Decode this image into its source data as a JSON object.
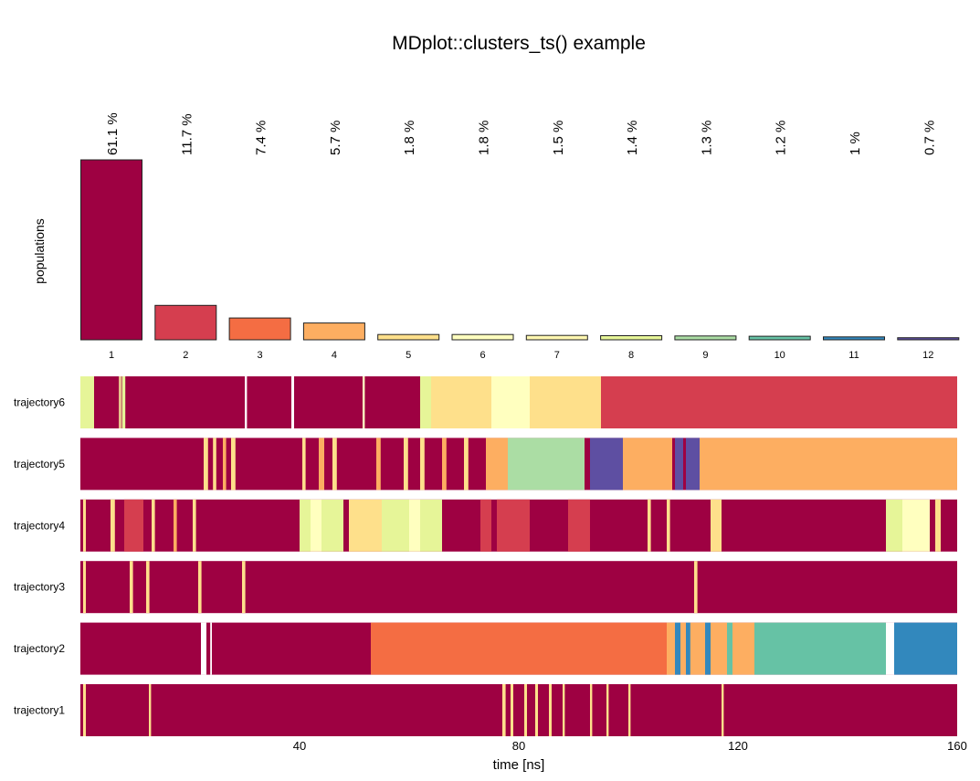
{
  "title": "MDplot::clusters_ts() example",
  "chart_data": [
    {
      "type": "bar",
      "ylabel": "populations",
      "categories": [
        "1",
        "2",
        "3",
        "4",
        "5",
        "6",
        "7",
        "8",
        "9",
        "10",
        "11",
        "12"
      ],
      "values": [
        61.1,
        11.7,
        7.4,
        5.7,
        1.8,
        1.8,
        1.5,
        1.4,
        1.3,
        1.2,
        1,
        0.7
      ],
      "value_labels": [
        "61.1 %",
        "11.7 %",
        "7.4 %",
        "5.7 %",
        "1.8 %",
        "1.8 %",
        "1.5 %",
        "1.4 %",
        "1.3 %",
        "1.2 %",
        "1 %",
        "0.7 %"
      ],
      "ylim": [
        0,
        61.1
      ],
      "colors": [
        "#9e0142",
        "#d53e4f",
        "#f46d43",
        "#fdae61",
        "#fee08b",
        "#ffffbf",
        "#fff7b0",
        "#e6f598",
        "#abdda4",
        "#66c2a5",
        "#3288bd",
        "#5e4fa2"
      ]
    },
    {
      "type": "heatmap",
      "xlabel": "time [ns]",
      "xlim": [
        0,
        160
      ],
      "xticks": [
        40,
        80,
        120,
        160
      ],
      "base_color": "#9e0142",
      "trajectories": [
        {
          "name": "trajectory6",
          "segments": [
            {
              "start": 0,
              "end": 2.5,
              "color": "#e6f598"
            },
            {
              "start": 7,
              "end": 7.5,
              "color": "#e6c08b"
            },
            {
              "start": 7.6,
              "end": 8.2,
              "color": "#e6f598"
            },
            {
              "start": 30,
              "end": 30.4,
              "color": "#ffffff"
            },
            {
              "start": 38.5,
              "end": 39,
              "color": "#ffffff"
            },
            {
              "start": 51.5,
              "end": 51.9,
              "color": "#ffffbf"
            },
            {
              "start": 62,
              "end": 64,
              "color": "#e6f598"
            },
            {
              "start": 64,
              "end": 75,
              "color": "#fee08b"
            },
            {
              "start": 75,
              "end": 82,
              "color": "#ffffbf"
            },
            {
              "start": 82,
              "end": 95,
              "color": "#fee08b"
            },
            {
              "start": 95,
              "end": 160,
              "color": "#d53e4f"
            }
          ]
        },
        {
          "name": "trajectory5",
          "segments": [
            {
              "start": 22.5,
              "end": 23.3,
              "color": "#fee08b"
            },
            {
              "start": 24.2,
              "end": 24.8,
              "color": "#fee08b"
            },
            {
              "start": 26,
              "end": 26.6,
              "color": "#fdae61"
            },
            {
              "start": 27.5,
              "end": 28.3,
              "color": "#fee08b"
            },
            {
              "start": 40.5,
              "end": 41.1,
              "color": "#fee08b"
            },
            {
              "start": 43.5,
              "end": 44.5,
              "color": "#fdae61"
            },
            {
              "start": 46,
              "end": 46.8,
              "color": "#fee08b"
            },
            {
              "start": 54,
              "end": 54.8,
              "color": "#fdae61"
            },
            {
              "start": 59,
              "end": 59.8,
              "color": "#fee08b"
            },
            {
              "start": 62,
              "end": 62.8,
              "color": "#fee08b"
            },
            {
              "start": 66,
              "end": 66.8,
              "color": "#fdae61"
            },
            {
              "start": 70,
              "end": 70.8,
              "color": "#fee08b"
            },
            {
              "start": 74,
              "end": 78,
              "color": "#fdae61"
            },
            {
              "start": 78,
              "end": 82,
              "color": "#abdda4"
            },
            {
              "start": 82,
              "end": 92,
              "color": "#abdda4"
            },
            {
              "start": 93,
              "end": 99,
              "color": "#5e4fa2"
            },
            {
              "start": 99,
              "end": 108,
              "color": "#fdae61"
            },
            {
              "start": 108.5,
              "end": 110,
              "color": "#5e4fa2"
            },
            {
              "start": 110.5,
              "end": 113,
              "color": "#5e4fa2"
            },
            {
              "start": 113,
              "end": 160,
              "color": "#fdae61"
            }
          ]
        },
        {
          "name": "trajectory4",
          "segments": [
            {
              "start": 0.5,
              "end": 1,
              "color": "#fee08b"
            },
            {
              "start": 5.5,
              "end": 6.3,
              "color": "#fee08b"
            },
            {
              "start": 8,
              "end": 11.5,
              "color": "#d53e4f"
            },
            {
              "start": 13,
              "end": 13.6,
              "color": "#fee08b"
            },
            {
              "start": 17,
              "end": 17.6,
              "color": "#fdae61"
            },
            {
              "start": 20.5,
              "end": 21.1,
              "color": "#fee08b"
            },
            {
              "start": 40,
              "end": 42,
              "color": "#e6f598"
            },
            {
              "start": 42,
              "end": 44,
              "color": "#ffffbf"
            },
            {
              "start": 44,
              "end": 48,
              "color": "#e6f598"
            },
            {
              "start": 49,
              "end": 55,
              "color": "#fee08b"
            },
            {
              "start": 55,
              "end": 60,
              "color": "#e6f598"
            },
            {
              "start": 60,
              "end": 62,
              "color": "#ffffbf"
            },
            {
              "start": 62,
              "end": 66,
              "color": "#e6f598"
            },
            {
              "start": 73,
              "end": 75,
              "color": "#d53e4f"
            },
            {
              "start": 76,
              "end": 82,
              "color": "#d53e4f"
            },
            {
              "start": 89,
              "end": 93,
              "color": "#d53e4f"
            },
            {
              "start": 103.5,
              "end": 104.1,
              "color": "#fee08b"
            },
            {
              "start": 107,
              "end": 107.6,
              "color": "#fee08b"
            },
            {
              "start": 115,
              "end": 117,
              "color": "#fee08b"
            },
            {
              "start": 147,
              "end": 150,
              "color": "#e6f598"
            },
            {
              "start": 150,
              "end": 155,
              "color": "#ffffbf"
            },
            {
              "start": 156,
              "end": 157,
              "color": "#fee08b"
            }
          ]
        },
        {
          "name": "trajectory3",
          "segments": [
            {
              "start": 0.5,
              "end": 1,
              "color": "#fee08b"
            },
            {
              "start": 9,
              "end": 9.6,
              "color": "#fee08b"
            },
            {
              "start": 12,
              "end": 12.6,
              "color": "#fee08b"
            },
            {
              "start": 21.5,
              "end": 22.1,
              "color": "#fee08b"
            },
            {
              "start": 29.5,
              "end": 30.1,
              "color": "#fee08b"
            },
            {
              "start": 112,
              "end": 112.6,
              "color": "#fee08b"
            }
          ]
        },
        {
          "name": "trajectory2",
          "segments": [
            {
              "start": 22,
              "end": 23,
              "color": "#ffffff"
            },
            {
              "start": 23.7,
              "end": 24,
              "color": "#ffffff"
            },
            {
              "start": 53,
              "end": 107,
              "color": "#f46d43"
            },
            {
              "start": 107,
              "end": 123,
              "color": "#fdae61"
            },
            {
              "start": 108.5,
              "end": 109.5,
              "color": "#3288bd"
            },
            {
              "start": 110.5,
              "end": 111.3,
              "color": "#3288bd"
            },
            {
              "start": 114,
              "end": 115,
              "color": "#3288bd"
            },
            {
              "start": 118,
              "end": 119,
              "color": "#66c2a5"
            },
            {
              "start": 123,
              "end": 147,
              "color": "#66c2a5"
            },
            {
              "start": 147,
              "end": 148.5,
              "color": "#ffffff"
            },
            {
              "start": 148.5,
              "end": 160,
              "color": "#3288bd"
            }
          ]
        },
        {
          "name": "trajectory1",
          "segments": [
            {
              "start": 0.5,
              "end": 1,
              "color": "#fee08b"
            },
            {
              "start": 12.5,
              "end": 12.9,
              "color": "#fee08b"
            },
            {
              "start": 77,
              "end": 77.6,
              "color": "#fee08b"
            },
            {
              "start": 78.5,
              "end": 79,
              "color": "#fee08b"
            },
            {
              "start": 81,
              "end": 81.5,
              "color": "#fee08b"
            },
            {
              "start": 83,
              "end": 83.5,
              "color": "#fee08b"
            },
            {
              "start": 85.5,
              "end": 86,
              "color": "#fee08b"
            },
            {
              "start": 88,
              "end": 88.4,
              "color": "#fee08b"
            },
            {
              "start": 93,
              "end": 93.4,
              "color": "#fee08b"
            },
            {
              "start": 96,
              "end": 96.4,
              "color": "#fee08b"
            },
            {
              "start": 100,
              "end": 100.4,
              "color": "#fee08b"
            },
            {
              "start": 117,
              "end": 117.4,
              "color": "#fee08b"
            }
          ]
        }
      ]
    }
  ]
}
